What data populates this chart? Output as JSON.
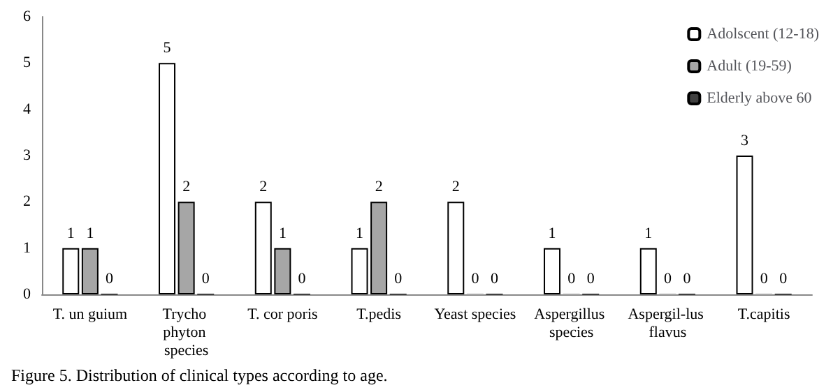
{
  "chart_data": {
    "type": "bar",
    "categories": [
      "T. un guium",
      "Trycho phyton species",
      "T. cor poris",
      "T.pedis",
      "Yeast species",
      "Aspergillus species",
      "Aspergil-lus flavus",
      "T.capitis"
    ],
    "series": [
      {
        "name": "Adolscent (12-18)",
        "color": "#ffffff",
        "values": [
          1,
          5,
          2,
          1,
          2,
          1,
          1,
          3
        ]
      },
      {
        "name": "Adult (19-59)",
        "color": "#a6a6a6",
        "values": [
          1,
          2,
          1,
          2,
          0,
          0,
          0,
          0
        ]
      },
      {
        "name": "Elderly above 60",
        "color": "#404040",
        "values": [
          0,
          0,
          0,
          0,
          0,
          0,
          0,
          0
        ]
      }
    ],
    "ylim": [
      0,
      6
    ],
    "yticks": [
      0,
      1,
      2,
      3,
      4,
      5,
      6
    ],
    "grid": false,
    "legend": "top right",
    "data_labels": true,
    "annotations": [
      "Figure 5. Distribution of clinical types according to age."
    ]
  }
}
